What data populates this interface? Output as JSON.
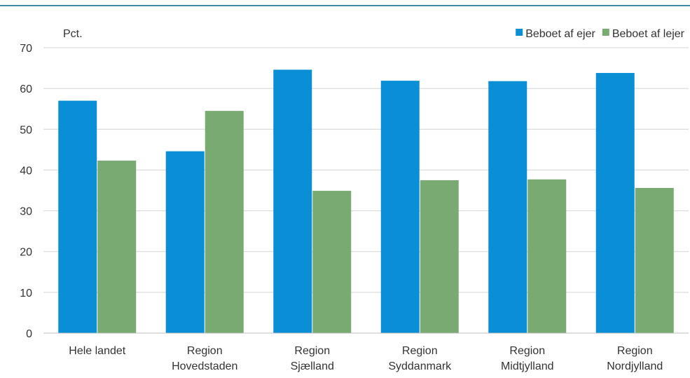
{
  "chart_data": {
    "type": "bar",
    "unit_label": "Pct.",
    "ylim": [
      0,
      70
    ],
    "yticks": [
      0,
      10,
      20,
      30,
      40,
      50,
      60,
      70
    ],
    "grid": true,
    "legend_position": "top-right",
    "categories": [
      [
        "Hele landet"
      ],
      [
        "Region",
        "Hovedstaden"
      ],
      [
        "Region",
        "Sjælland"
      ],
      [
        "Region",
        "Syddanmark"
      ],
      [
        "Region",
        "Midtjylland"
      ],
      [
        "Region",
        "Nordjylland"
      ]
    ],
    "series": [
      {
        "name": "Beboet af ejer",
        "color": "#0a8fd6",
        "values": [
          57.0,
          44.6,
          64.6,
          61.9,
          61.8,
          63.8
        ]
      },
      {
        "name": "Beboet af lejer",
        "color": "#79aa72",
        "values": [
          42.3,
          54.5,
          34.9,
          37.5,
          37.7,
          35.6
        ]
      }
    ]
  }
}
